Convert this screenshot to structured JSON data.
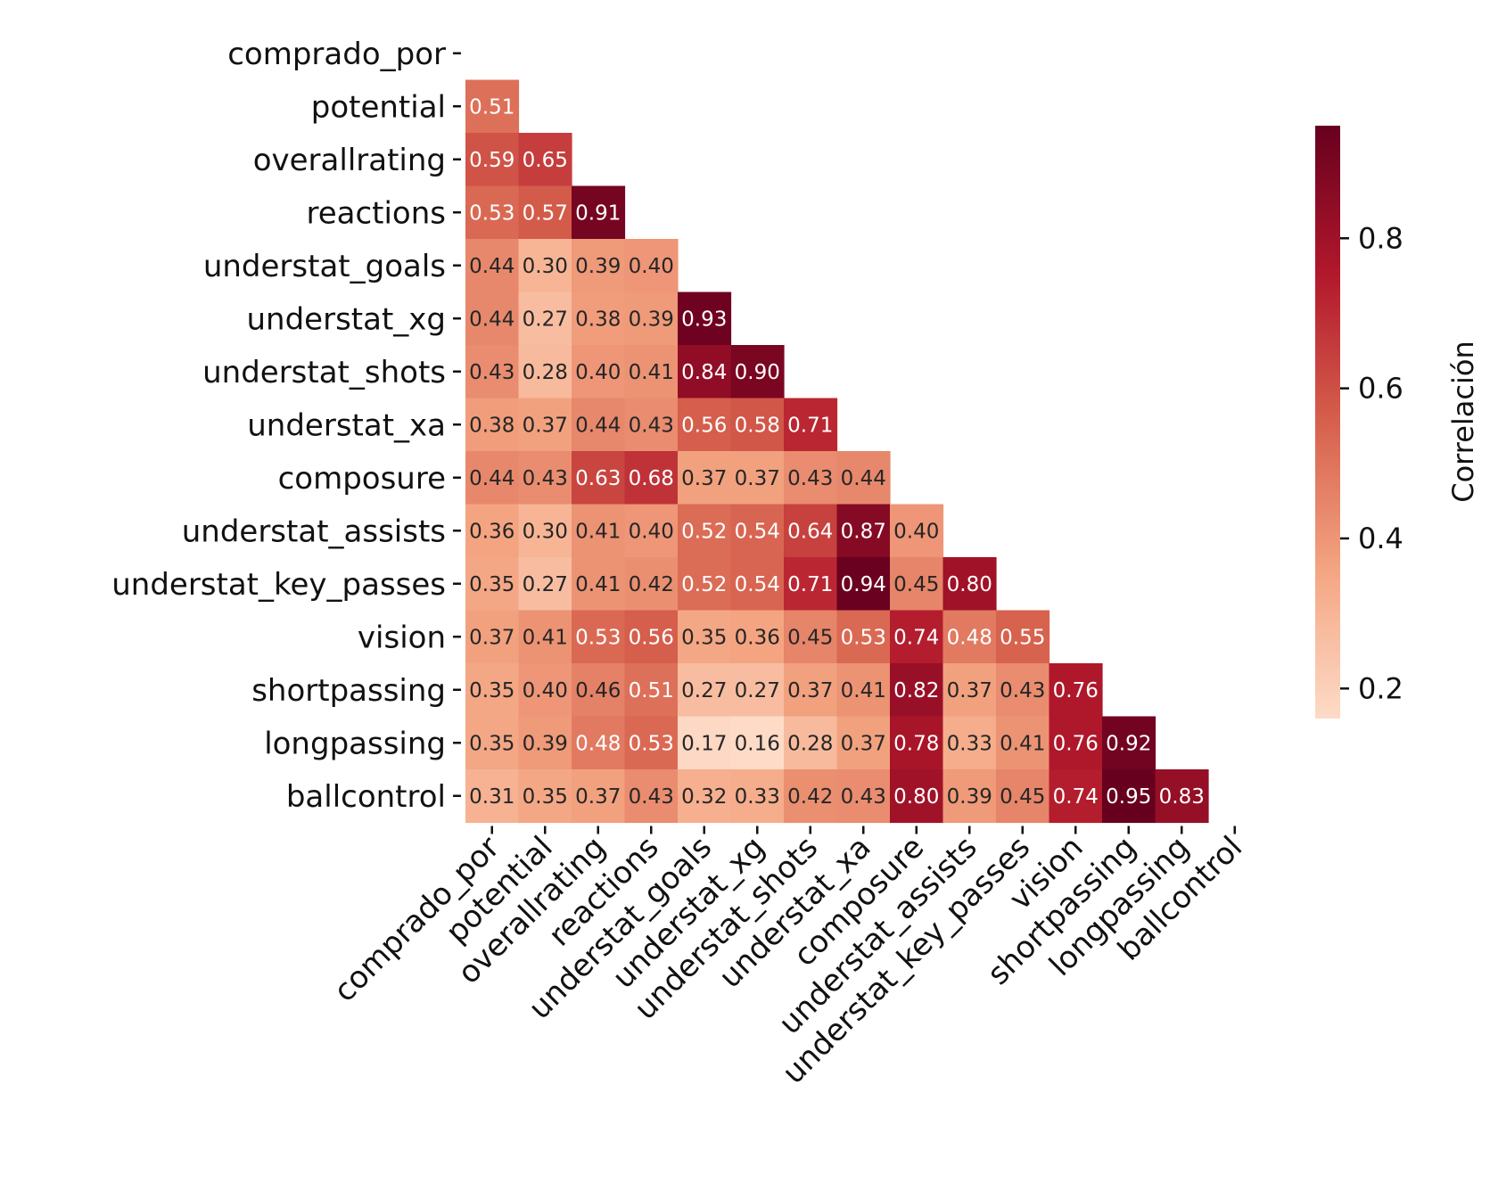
{
  "chart_data": {
    "type": "heatmap",
    "variables": [
      "comprado_por",
      "potential",
      "overallrating",
      "reactions",
      "understat_goals",
      "understat_xg",
      "understat_shots",
      "understat_xa",
      "composure",
      "understat_assists",
      "understat_key_passes",
      "vision",
      "shortpassing",
      "longpassing",
      "ballcontrol"
    ],
    "mask": "lower-triangle",
    "matrix_lower": [
      [],
      [
        0.51
      ],
      [
        0.59,
        0.65
      ],
      [
        0.53,
        0.57,
        0.91
      ],
      [
        0.44,
        0.3,
        0.39,
        0.4
      ],
      [
        0.44,
        0.27,
        0.38,
        0.39,
        0.93
      ],
      [
        0.43,
        0.28,
        0.4,
        0.41,
        0.84,
        0.9
      ],
      [
        0.38,
        0.37,
        0.44,
        0.43,
        0.56,
        0.58,
        0.71
      ],
      [
        0.44,
        0.43,
        0.63,
        0.68,
        0.37,
        0.37,
        0.43,
        0.44
      ],
      [
        0.36,
        0.3,
        0.41,
        0.4,
        0.52,
        0.54,
        0.64,
        0.87,
        0.4
      ],
      [
        0.35,
        0.27,
        0.41,
        0.42,
        0.52,
        0.54,
        0.71,
        0.94,
        0.45,
        0.8
      ],
      [
        0.37,
        0.41,
        0.53,
        0.56,
        0.35,
        0.36,
        0.45,
        0.53,
        0.74,
        0.48,
        0.55
      ],
      [
        0.35,
        0.4,
        0.46,
        0.51,
        0.27,
        0.27,
        0.37,
        0.41,
        0.82,
        0.37,
        0.43,
        0.76
      ],
      [
        0.35,
        0.39,
        0.48,
        0.53,
        0.17,
        0.16,
        0.28,
        0.37,
        0.78,
        0.33,
        0.41,
        0.76,
        0.92
      ],
      [
        0.31,
        0.35,
        0.37,
        0.43,
        0.32,
        0.33,
        0.42,
        0.43,
        0.8,
        0.39,
        0.45,
        0.74,
        0.95,
        0.83
      ]
    ],
    "colormap": "RdBu_r (reds half)",
    "vmin": 0.16,
    "vmax": 0.95,
    "colorbar": {
      "label": "Correlación",
      "ticks": [
        0.2,
        0.4,
        0.6,
        0.8
      ],
      "tick_labels": [
        "0.2",
        "0.4",
        "0.6",
        "0.8"
      ]
    },
    "title": "",
    "xlabel": "",
    "ylabel": ""
  }
}
